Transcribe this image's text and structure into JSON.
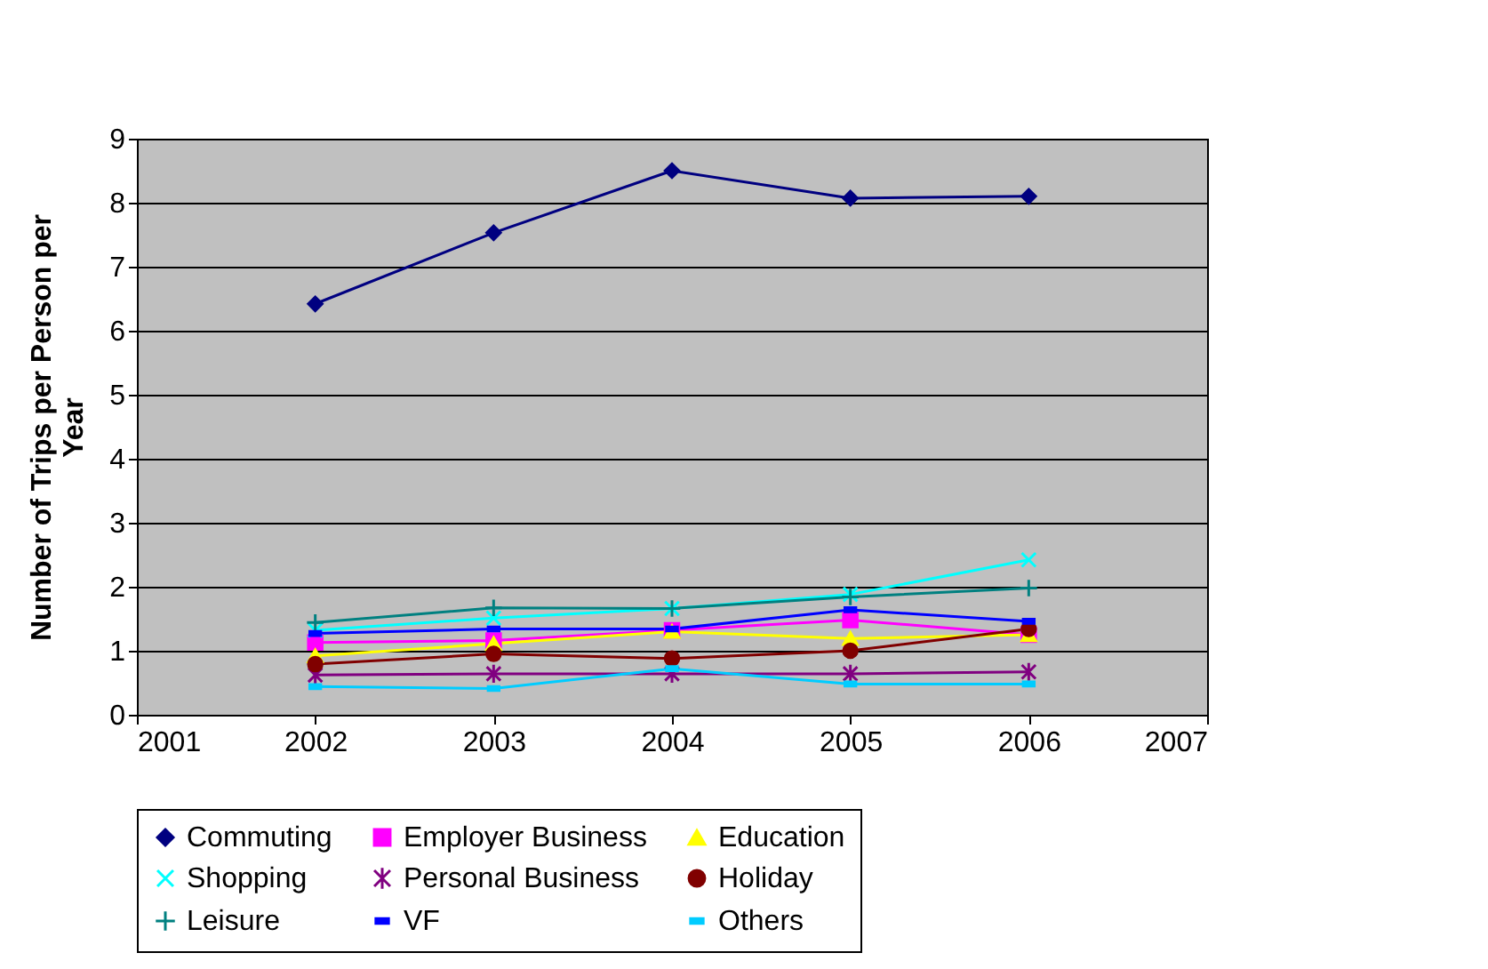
{
  "chart_data": {
    "type": "line",
    "ylabel": "Number of Trips per Person per Year",
    "x": [
      2002,
      2003,
      2004,
      2005,
      2006
    ],
    "xlim": [
      2001,
      2007
    ],
    "xticks": [
      2001,
      2002,
      2003,
      2004,
      2005,
      2006,
      2007
    ],
    "ylim": [
      0,
      9
    ],
    "yticks": [
      0,
      1,
      2,
      3,
      4,
      5,
      6,
      7,
      8,
      9
    ],
    "grid": "y",
    "legend": "bottom",
    "series": [
      {
        "name": "Commuting",
        "color": "#000080",
        "marker": "diamond",
        "values": [
          6.42,
          7.53,
          8.5,
          8.07,
          8.1
        ]
      },
      {
        "name": "Employer Business",
        "color": "#ff00ff",
        "marker": "square",
        "values": [
          1.13,
          1.16,
          1.32,
          1.48,
          1.25
        ]
      },
      {
        "name": "Education",
        "color": "#ffff00",
        "marker": "triangle",
        "values": [
          0.92,
          1.11,
          1.3,
          1.19,
          1.25
        ]
      },
      {
        "name": "Shopping",
        "color": "#00ffff",
        "marker": "cross",
        "values": [
          1.32,
          1.51,
          1.66,
          1.88,
          2.42
        ]
      },
      {
        "name": "Personal Business",
        "color": "#800080",
        "marker": "cross",
        "values": [
          0.62,
          0.64,
          0.64,
          0.64,
          0.67
        ]
      },
      {
        "name": "Holiday",
        "color": "#800000",
        "marker": "circle",
        "values": [
          0.79,
          0.95,
          0.88,
          1.0,
          1.34
        ]
      },
      {
        "name": "Leisure",
        "color": "#008080",
        "marker": "plus",
        "values": [
          1.44,
          1.67,
          1.66,
          1.84,
          1.98
        ]
      },
      {
        "name": "VF",
        "color": "#0000ff",
        "marker": "square",
        "values": [
          1.27,
          1.34,
          1.34,
          1.64,
          1.46
        ]
      },
      {
        "name": "Others",
        "color": "#00ccff",
        "marker": "square",
        "values": [
          0.44,
          0.41,
          0.72,
          0.48,
          0.48
        ]
      }
    ]
  }
}
